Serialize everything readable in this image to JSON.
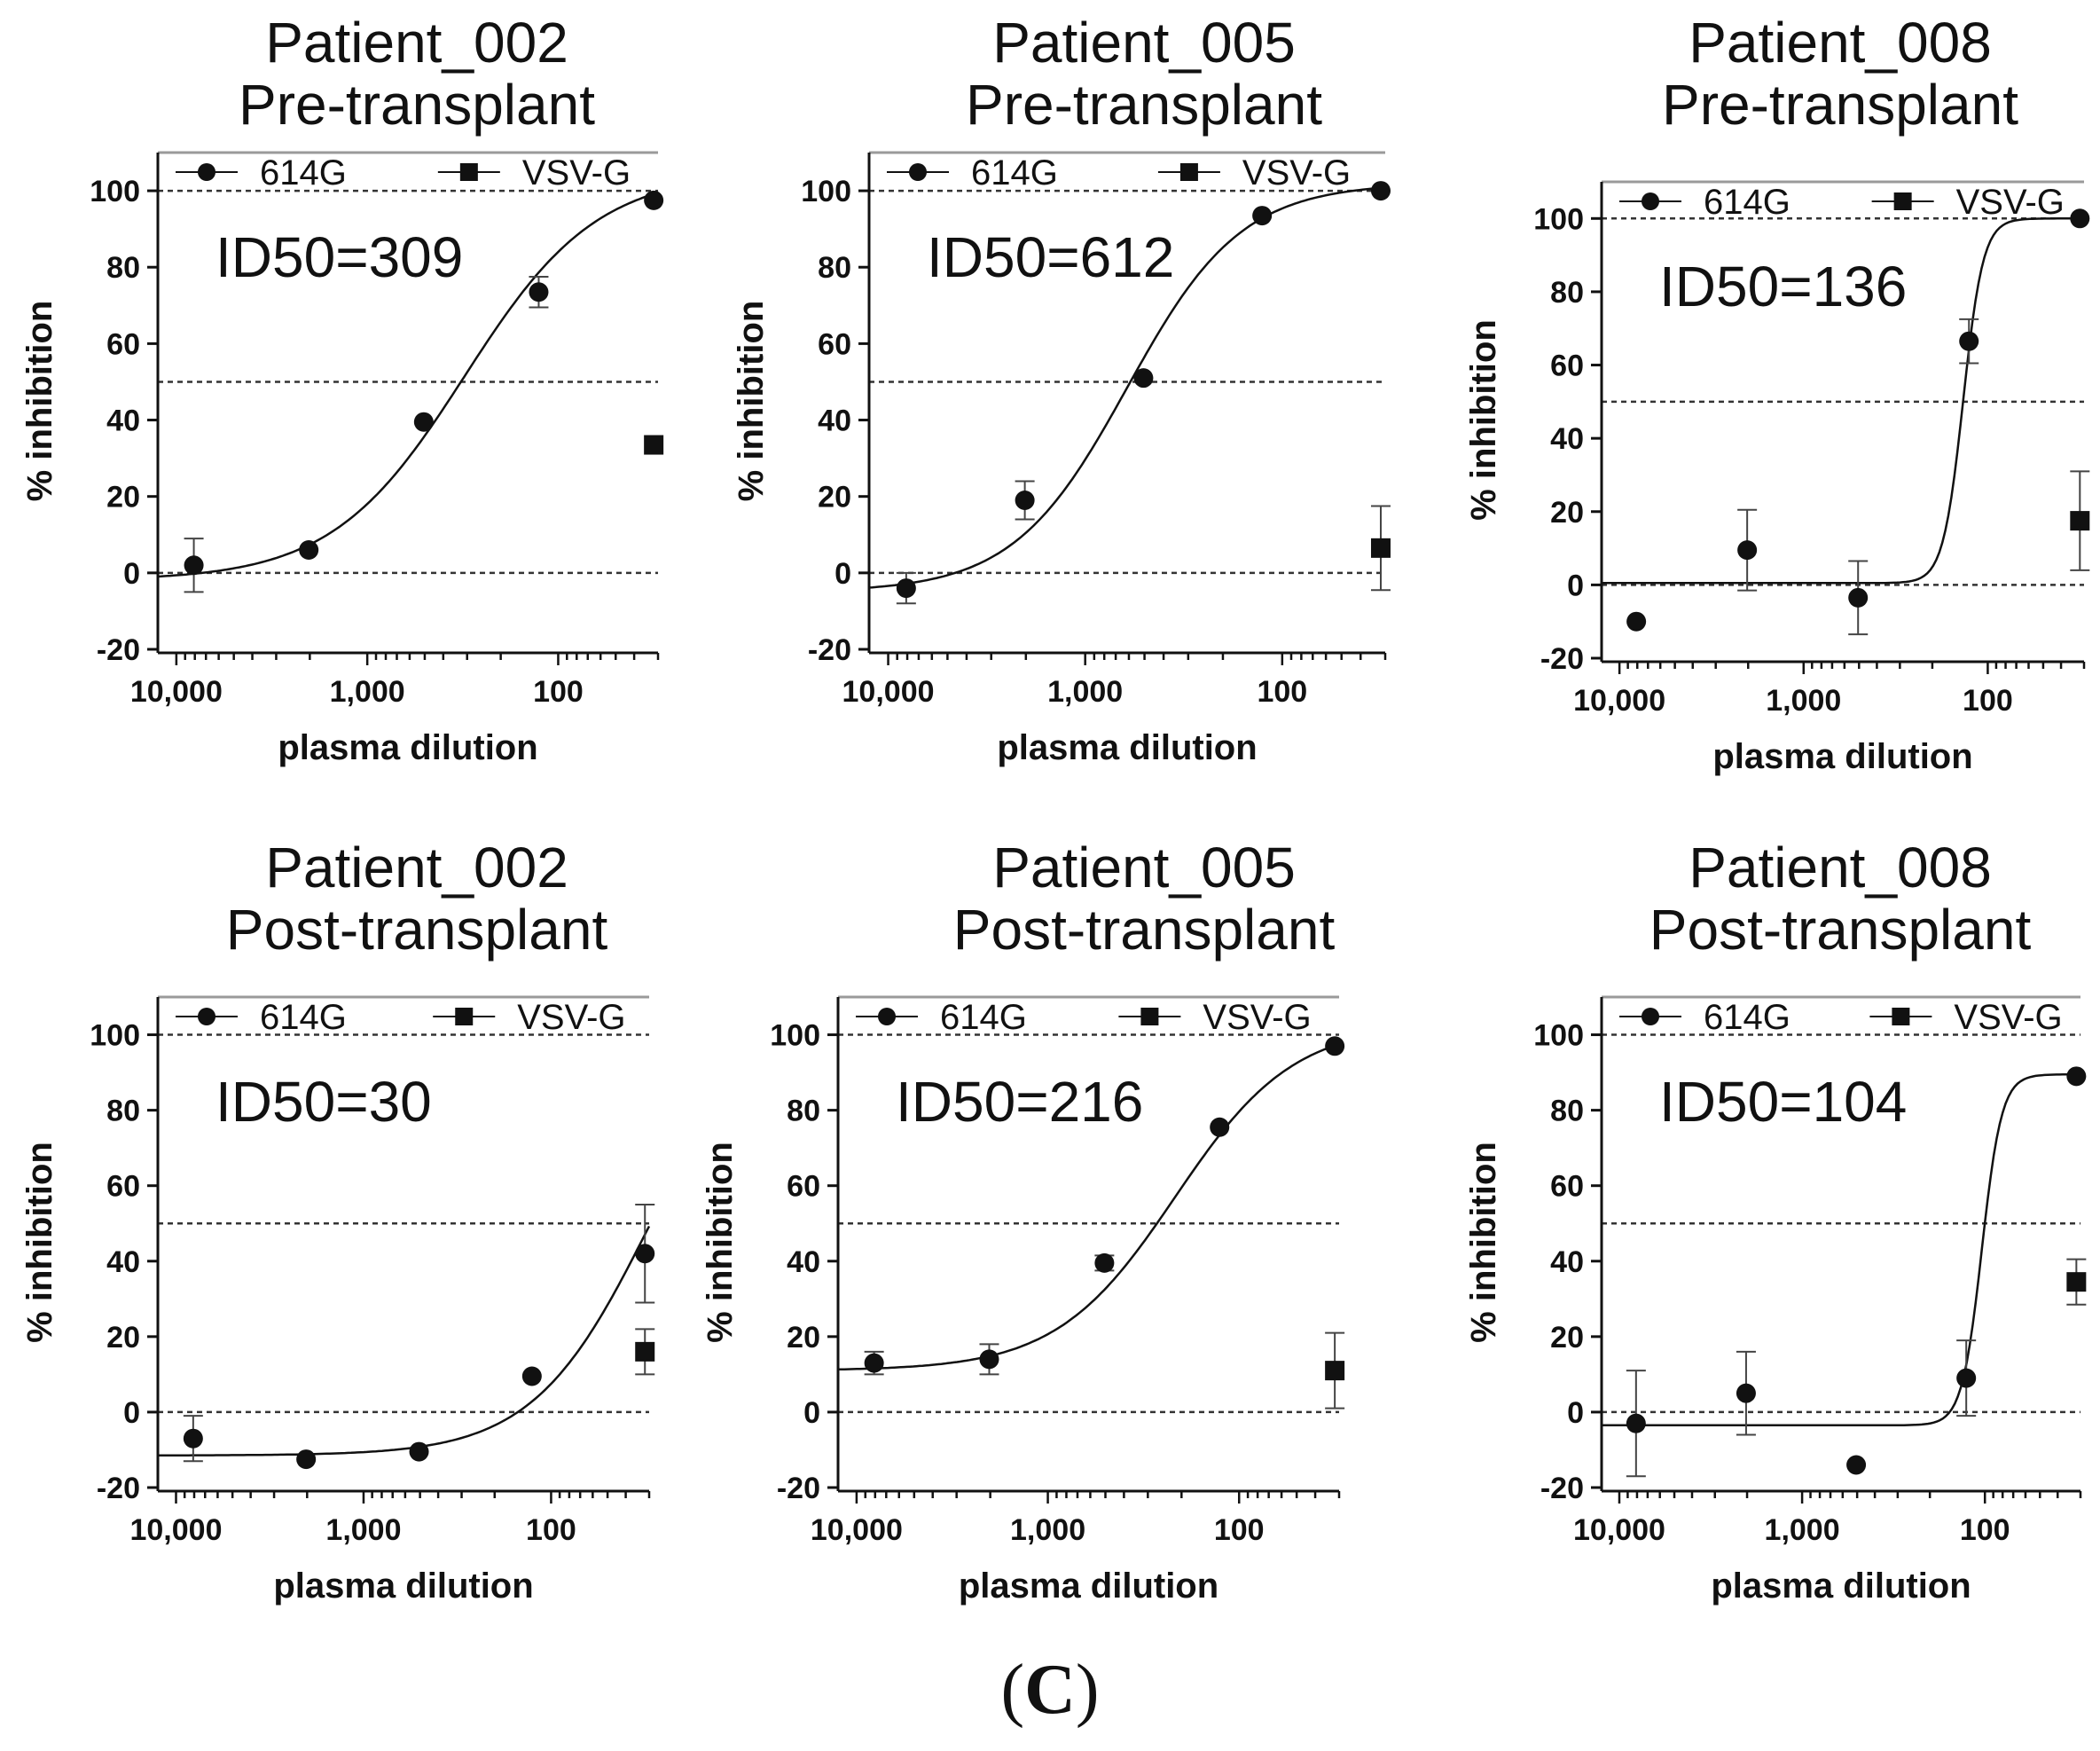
{
  "figure": {
    "panel_tag_open": "(",
    "panel_tag_letter": "C",
    "panel_tag_close": ")",
    "colors": {
      "ink": "#111111",
      "frame": "#9a9a9a",
      "reference_line": "#333333"
    }
  },
  "chart_data": [
    {
      "type": "scatter",
      "title_line1": "Patient_002",
      "title_line2": "Pre-transplant",
      "id50_label": "ID50=309",
      "xlabel": "plasma dilution",
      "ylabel": "% inhibition",
      "x_scale": "log-reversed",
      "xlim": [
        12500,
        30
      ],
      "ylim": [
        -20,
        110
      ],
      "x_ticks": [
        10000,
        1000,
        100
      ],
      "x_tick_labels": [
        "10,000",
        "1,000",
        "100"
      ],
      "y_ticks": [
        -20,
        0,
        20,
        40,
        60,
        80,
        100
      ],
      "y_tick_labels": [
        "-20",
        "0",
        "20",
        "40",
        "60",
        "80",
        "100"
      ],
      "reference_lines": [
        0,
        50,
        100
      ],
      "legend": [
        "614G",
        "VSV-G"
      ],
      "series": [
        {
          "name": "614G",
          "marker": "circle",
          "x": [
            8100,
            2025,
            506,
            126.5,
            31.6
          ],
          "y": [
            2,
            6,
            39.5,
            73.5,
            97.5
          ],
          "err": [
            7,
            0,
            0,
            4,
            0
          ]
        },
        {
          "name": "VSV-G",
          "marker": "square",
          "x": [
            31.6
          ],
          "y": [
            33.5
          ],
          "err": [
            0
          ]
        }
      ],
      "fit": {
        "bottom": -2,
        "top": 105,
        "ec50": 309,
        "hill": 1.25
      }
    },
    {
      "type": "scatter",
      "title_line1": "Patient_005",
      "title_line2": "Pre-transplant",
      "id50_label": "ID50=612",
      "xlabel": "plasma dilution",
      "ylabel": "% inhibition",
      "x_scale": "log-reversed",
      "xlim": [
        12500,
        30
      ],
      "ylim": [
        -20,
        110
      ],
      "x_ticks": [
        10000,
        1000,
        100
      ],
      "x_tick_labels": [
        "10,000",
        "1,000",
        "100"
      ],
      "y_ticks": [
        -20,
        0,
        20,
        40,
        60,
        80,
        100
      ],
      "y_tick_labels": [
        "-20",
        "0",
        "20",
        "40",
        "60",
        "80",
        "100"
      ],
      "reference_lines": [
        0,
        50,
        100
      ],
      "legend": [
        "614G",
        "VSV-G"
      ],
      "series": [
        {
          "name": "614G",
          "marker": "circle",
          "x": [
            8100,
            2025,
            506,
            126.5,
            31.6
          ],
          "y": [
            -4,
            19,
            51,
            93.5,
            100
          ],
          "err": [
            4,
            5,
            0,
            0,
            0
          ]
        },
        {
          "name": "VSV-G",
          "marker": "square",
          "x": [
            31.6
          ],
          "y": [
            6.5
          ],
          "err": [
            11
          ]
        }
      ],
      "fit": {
        "bottom": -5,
        "top": 102,
        "ec50": 612,
        "hill": 1.5
      }
    },
    {
      "type": "scatter",
      "title_line1": "Patient_008",
      "title_line2": "Pre-transplant",
      "id50_label": "ID50=136",
      "xlabel": "plasma dilution",
      "ylabel": "% inhibition",
      "x_scale": "log-reversed",
      "xlim": [
        12500,
        30
      ],
      "ylim": [
        -20,
        110
      ],
      "x_ticks": [
        10000,
        1000,
        100
      ],
      "x_tick_labels": [
        "10,000",
        "1,000",
        "100"
      ],
      "y_ticks": [
        -20,
        0,
        20,
        40,
        60,
        80,
        100
      ],
      "y_tick_labels": [
        "-20",
        "0",
        "20",
        "40",
        "60",
        "80",
        "100"
      ],
      "reference_lines": [
        0,
        50,
        100
      ],
      "legend": [
        "614G",
        "VSV-G"
      ],
      "series": [
        {
          "name": "614G",
          "marker": "circle",
          "x": [
            8100,
            2025,
            506,
            126.5,
            31.6
          ],
          "y": [
            -10,
            9.5,
            -3.5,
            66.5,
            100
          ],
          "err": [
            0,
            11,
            10,
            6,
            0
          ]
        },
        {
          "name": "VSV-G",
          "marker": "square",
          "x": [
            31.6
          ],
          "y": [
            17.5
          ],
          "err": [
            13.5
          ]
        }
      ],
      "fit": {
        "bottom": 0.5,
        "top": 100,
        "ec50": 136,
        "hill": 8
      }
    },
    {
      "type": "scatter",
      "title_line1": "Patient_002",
      "title_line2": "Post-transplant",
      "id50_label": "ID50=30",
      "xlabel": "plasma dilution",
      "ylabel": "% inhibition",
      "x_scale": "log-reversed",
      "xlim": [
        12500,
        30
      ],
      "ylim": [
        -20,
        110
      ],
      "x_ticks": [
        10000,
        1000,
        100
      ],
      "x_tick_labels": [
        "10,000",
        "1,000",
        "100"
      ],
      "y_ticks": [
        -20,
        0,
        20,
        40,
        60,
        80,
        100
      ],
      "y_tick_labels": [
        "-20",
        "0",
        "20",
        "40",
        "60",
        "80",
        "100"
      ],
      "reference_lines": [
        0,
        50,
        100
      ],
      "legend": [
        "614G",
        "VSV-G"
      ],
      "series": [
        {
          "name": "614G",
          "marker": "circle",
          "x": [
            8100,
            2025,
            506,
            126.5,
            31.6
          ],
          "y": [
            -7,
            -12.5,
            -10.5,
            9.5,
            42
          ],
          "err": [
            6,
            0,
            0,
            0,
            13
          ]
        },
        {
          "name": "VSV-G",
          "marker": "square",
          "x": [
            31.6
          ],
          "y": [
            16
          ],
          "err": [
            6
          ]
        }
      ],
      "fit": {
        "bottom": -11.5,
        "top": 110,
        "ec50": 30,
        "hill": 1.4
      }
    },
    {
      "type": "scatter",
      "title_line1": "Patient_005",
      "title_line2": "Post-transplant",
      "id50_label": "ID50=216",
      "xlabel": "plasma dilution",
      "ylabel": "% inhibition",
      "x_scale": "log-reversed",
      "xlim": [
        12500,
        30
      ],
      "ylim": [
        -20,
        110
      ],
      "x_ticks": [
        10000,
        1000,
        100
      ],
      "x_tick_labels": [
        "10,000",
        "1,000",
        "100"
      ],
      "y_ticks": [
        -20,
        0,
        20,
        40,
        60,
        80,
        100
      ],
      "y_tick_labels": [
        "-20",
        "0",
        "20",
        "40",
        "60",
        "80",
        "100"
      ],
      "reference_lines": [
        0,
        50,
        100
      ],
      "legend": [
        "614G",
        "VSV-G"
      ],
      "series": [
        {
          "name": "614G",
          "marker": "circle",
          "x": [
            8100,
            2025,
            506,
            126.5,
            31.6
          ],
          "y": [
            13,
            14,
            39.5,
            75.5,
            97
          ],
          "err": [
            3,
            4,
            2,
            0,
            0
          ]
        },
        {
          "name": "VSV-G",
          "marker": "square",
          "x": [
            31.6
          ],
          "y": [
            11
          ],
          "err": [
            10
          ]
        }
      ],
      "fit": {
        "bottom": 11,
        "top": 103,
        "ec50": 216,
        "hill": 1.4
      }
    },
    {
      "type": "scatter",
      "title_line1": "Patient_008",
      "title_line2": "Post-transplant",
      "id50_label": "ID50=104",
      "xlabel": "plasma dilution",
      "ylabel": "% inhibition",
      "x_scale": "log-reversed",
      "xlim": [
        12500,
        30
      ],
      "ylim": [
        -20,
        110
      ],
      "x_ticks": [
        10000,
        1000,
        100
      ],
      "x_tick_labels": [
        "10,000",
        "1,000",
        "100"
      ],
      "y_ticks": [
        -20,
        0,
        20,
        40,
        60,
        80,
        100
      ],
      "y_tick_labels": [
        "-20",
        "0",
        "20",
        "40",
        "60",
        "80",
        "100"
      ],
      "reference_lines": [
        0,
        50,
        100
      ],
      "legend": [
        "614G",
        "VSV-G"
      ],
      "series": [
        {
          "name": "614G",
          "marker": "circle",
          "x": [
            8100,
            2025,
            506,
            126.5,
            31.6
          ],
          "y": [
            -3,
            5,
            -14,
            9,
            89
          ],
          "err": [
            14,
            11,
            0,
            10,
            0
          ]
        },
        {
          "name": "VSV-G",
          "marker": "square",
          "x": [
            31.6
          ],
          "y": [
            34.5
          ],
          "err": [
            6
          ]
        }
      ],
      "fit": {
        "bottom": -3.5,
        "top": 89.5,
        "ec50": 104,
        "hill": 8
      }
    }
  ]
}
